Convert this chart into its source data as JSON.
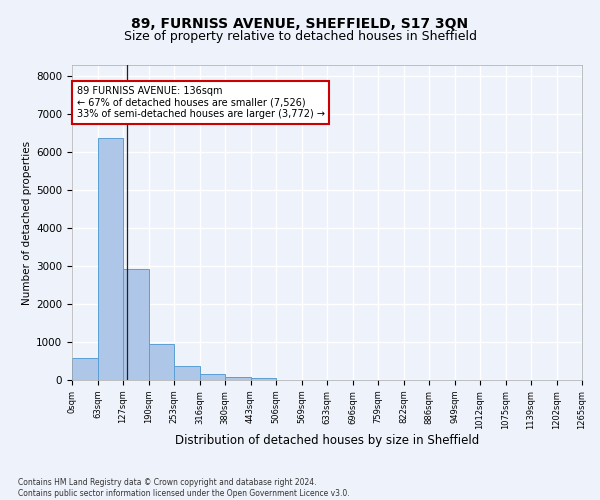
{
  "title1": "89, FURNISS AVENUE, SHEFFIELD, S17 3QN",
  "title2": "Size of property relative to detached houses in Sheffield",
  "xlabel": "Distribution of detached houses by size in Sheffield",
  "ylabel": "Number of detached properties",
  "footnote": "Contains HM Land Registry data © Crown copyright and database right 2024.\nContains public sector information licensed under the Open Government Licence v3.0.",
  "bin_labels": [
    "0sqm",
    "63sqm",
    "127sqm",
    "190sqm",
    "253sqm",
    "316sqm",
    "380sqm",
    "443sqm",
    "506sqm",
    "569sqm",
    "633sqm",
    "696sqm",
    "759sqm",
    "822sqm",
    "886sqm",
    "949sqm",
    "1012sqm",
    "1075sqm",
    "1139sqm",
    "1202sqm",
    "1265sqm"
  ],
  "bar_values": [
    580,
    6380,
    2920,
    960,
    360,
    160,
    90,
    60,
    0,
    0,
    0,
    0,
    0,
    0,
    0,
    0,
    0,
    0,
    0,
    0
  ],
  "bar_color": "#aec6e8",
  "bar_edge_color": "#5a9fd4",
  "property_line_x": 2.145,
  "annotation_text": "89 FURNISS AVENUE: 136sqm\n← 67% of detached houses are smaller (7,526)\n33% of semi-detached houses are larger (3,772) →",
  "annotation_box_color": "#ffffff",
  "annotation_box_edge_color": "#cc0000",
  "ylim": [
    0,
    8300
  ],
  "yticks": [
    0,
    1000,
    2000,
    3000,
    4000,
    5000,
    6000,
    7000,
    8000
  ],
  "background_color": "#eef2fa",
  "grid_color": "#ffffff",
  "title1_fontsize": 10,
  "title2_fontsize": 9
}
